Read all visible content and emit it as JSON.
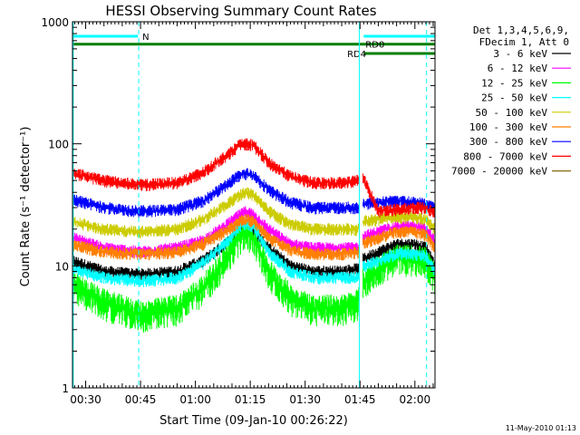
{
  "chart_data": {
    "type": "line",
    "title": "HESSI Observing Summary Count Rates",
    "xlabel": "Start Time (09-Jan-10 00:26:22)",
    "ylabel": "Count Rate (s⁻¹ detector⁻¹)",
    "yscale": "log",
    "ylim": [
      1,
      1000
    ],
    "xlim_minutes": [
      26.4,
      125.5
    ],
    "x_ticks": [
      {
        "label": "00:30",
        "min": 30
      },
      {
        "label": "00:45",
        "min": 45
      },
      {
        "label": "01:00",
        "min": 60
      },
      {
        "label": "01:15",
        "min": 75
      },
      {
        "label": "01:30",
        "min": 90
      },
      {
        "label": "01:45",
        "min": 105
      },
      {
        "label": "02:00",
        "min": 120
      }
    ],
    "y_ticks": [
      "1",
      "10",
      "100",
      "1000"
    ],
    "legend_header": [
      "Det 1,3,4,5,6,9,",
      "FDecim 1, Att 0"
    ],
    "series": [
      {
        "name": "3 - 6 keV",
        "color": "#000000",
        "x": [
          26.4,
          35,
          45,
          55,
          62,
          68,
          72,
          74,
          76,
          80,
          86,
          92,
          100,
          104.5,
          105,
          110,
          115,
          120,
          123,
          125.5
        ],
        "y": [
          11,
          9,
          8.5,
          9,
          11,
          15,
          19,
          20,
          19,
          14,
          10,
          9,
          9,
          9.5,
          11,
          13,
          15,
          15,
          14,
          10
        ]
      },
      {
        "name": "6 - 12 keV",
        "color": "#ff00ff",
        "x": [
          26.4,
          35,
          45,
          55,
          62,
          68,
          72,
          74,
          76,
          80,
          86,
          92,
          100,
          104.5,
          105,
          110,
          115,
          120,
          123,
          125.5
        ],
        "y": [
          17,
          14,
          13,
          14,
          16,
          21,
          26,
          28,
          26,
          20,
          15,
          14,
          14,
          14,
          17,
          19,
          21,
          21,
          20,
          16
        ]
      },
      {
        "name": "12 - 25 keV",
        "color": "#00ff00",
        "x": [
          26.4,
          35,
          45,
          55,
          62,
          68,
          72,
          74,
          76,
          80,
          86,
          92,
          100,
          104.5,
          105,
          110,
          115,
          120,
          123,
          125.5
        ],
        "y": [
          7,
          5,
          4,
          4.5,
          6.5,
          11,
          17,
          19,
          17,
          9,
          5.5,
          4.5,
          4.5,
          5,
          7,
          9.5,
          11.5,
          11.5,
          11,
          8
        ]
      },
      {
        "name": "25 - 50 keV",
        "color": "#00ffff",
        "x": [
          26.4,
          35,
          45,
          55,
          62,
          68,
          72,
          74,
          76,
          80,
          86,
          92,
          100,
          104.5,
          105,
          110,
          115,
          120,
          123,
          125.5
        ],
        "y": [
          9.5,
          8,
          7.5,
          8,
          10.5,
          15,
          21,
          22,
          21,
          13,
          9,
          8,
          8,
          8,
          9.5,
          11,
          12.5,
          12.5,
          12,
          9
        ]
      },
      {
        "name": "50 - 100 keV",
        "color": "#cccc00",
        "x": [
          26.4,
          35,
          45,
          55,
          62,
          68,
          72,
          74,
          76,
          80,
          86,
          92,
          100,
          104.5,
          105,
          110,
          115,
          120,
          123,
          125.5
        ],
        "y": [
          23,
          20,
          19,
          20,
          24,
          31,
          38,
          40,
          38,
          28,
          22,
          20,
          20,
          20,
          23,
          24,
          25,
          25,
          24,
          20
        ]
      },
      {
        "name": "100 - 300 keV",
        "color": "#ff7f00",
        "x": [
          26.4,
          35,
          45,
          55,
          62,
          68,
          72,
          74,
          76,
          80,
          86,
          92,
          100,
          104.5,
          105,
          110,
          115,
          120,
          123,
          125.5
        ],
        "y": [
          15,
          13,
          12.5,
          13,
          15,
          19,
          23,
          24,
          23,
          17,
          13.5,
          12.5,
          12.5,
          13,
          15,
          17,
          19,
          19,
          18,
          14
        ]
      },
      {
        "name": "300 - 800 keV",
        "color": "#0000ff",
        "x": [
          26.4,
          35,
          45,
          55,
          62,
          68,
          72,
          74,
          76,
          80,
          86,
          92,
          100,
          104.5,
          105,
          110,
          115,
          120,
          123,
          125.5
        ],
        "y": [
          35,
          30,
          28,
          29,
          34,
          45,
          55,
          57,
          55,
          42,
          33,
          30,
          30,
          30,
          32,
          33,
          34,
          33,
          32,
          30
        ]
      },
      {
        "name": "800 - 7000 keV",
        "color": "#ff0000",
        "x": [
          26.4,
          35,
          45,
          55,
          62,
          68,
          72,
          74,
          76,
          80,
          86,
          92,
          100,
          104.5,
          105,
          110,
          115,
          120,
          123,
          125.5
        ],
        "y": [
          58,
          50,
          46,
          48,
          58,
          78,
          97,
          100,
          97,
          70,
          54,
          48,
          48,
          50,
          60,
          28,
          29,
          30,
          30,
          27
        ]
      },
      {
        "name": "7000 - 20000 keV",
        "color": "#8b6914",
        "x": [],
        "y": []
      }
    ],
    "flags": [
      {
        "label": "N",
        "color": "#00ffff",
        "segments": [
          [
            26.4,
            44.3
          ],
          [
            106,
            125.5
          ]
        ],
        "y": 760,
        "label_x": 45.5
      },
      {
        "label": "RD0",
        "color": "#007f00",
        "segments": [
          [
            26.4,
            125.5
          ]
        ],
        "y": 655,
        "label_x": 106.5
      },
      {
        "label": "RD4",
        "color": "#007f00",
        "segments": [
          [
            106,
            125.5
          ]
        ],
        "y": 550,
        "label_x": 101.5
      }
    ],
    "vlines": [
      {
        "x": 26.6,
        "style": "solid",
        "color": "#00ffff"
      },
      {
        "x": 44.5,
        "style": "dashed",
        "color": "#00ffff"
      },
      {
        "x": 104.8,
        "style": "solid",
        "color": "#00ffff"
      },
      {
        "x": 123.2,
        "style": "dashed",
        "color": "#00ffff"
      }
    ]
  },
  "footer": {
    "timestamp": "11-May-2010 01:13"
  }
}
